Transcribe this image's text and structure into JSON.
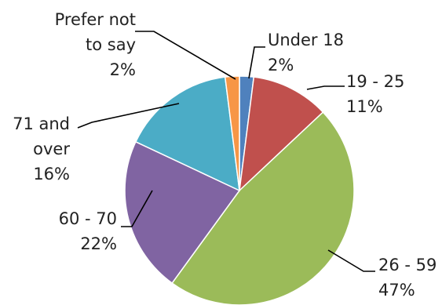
{
  "chart_data": {
    "type": "pie",
    "title": "",
    "start_angle_deg": 0,
    "direction": "clockwise",
    "slices": [
      {
        "label_lines": [
          "Under 18"
        ],
        "label": "Under 18",
        "value": 2,
        "value_label": "2%",
        "color": "#4f81bd"
      },
      {
        "label_lines": [
          "19 - 25"
        ],
        "label": "19 - 25",
        "value": 11,
        "value_label": "11%",
        "color": "#c0504d"
      },
      {
        "label_lines": [
          "26 - 59"
        ],
        "label": "26 - 59",
        "value": 47,
        "value_label": "47%",
        "color": "#9bbb59"
      },
      {
        "label_lines": [
          "60 - 70"
        ],
        "label": "60 - 70",
        "value": 22,
        "value_label": "22%",
        "color": "#8064a2"
      },
      {
        "label_lines": [
          "71 and",
          "over"
        ],
        "label": "71 and over",
        "value": 16,
        "value_label": "16%",
        "color": "#4bacc6"
      },
      {
        "label_lines": [
          "Prefer not",
          "to say"
        ],
        "label": "Prefer not to say",
        "value": 2,
        "value_label": "2%",
        "color": "#f79646"
      }
    ],
    "legend": "none",
    "label_position": "outside with leader lines"
  }
}
